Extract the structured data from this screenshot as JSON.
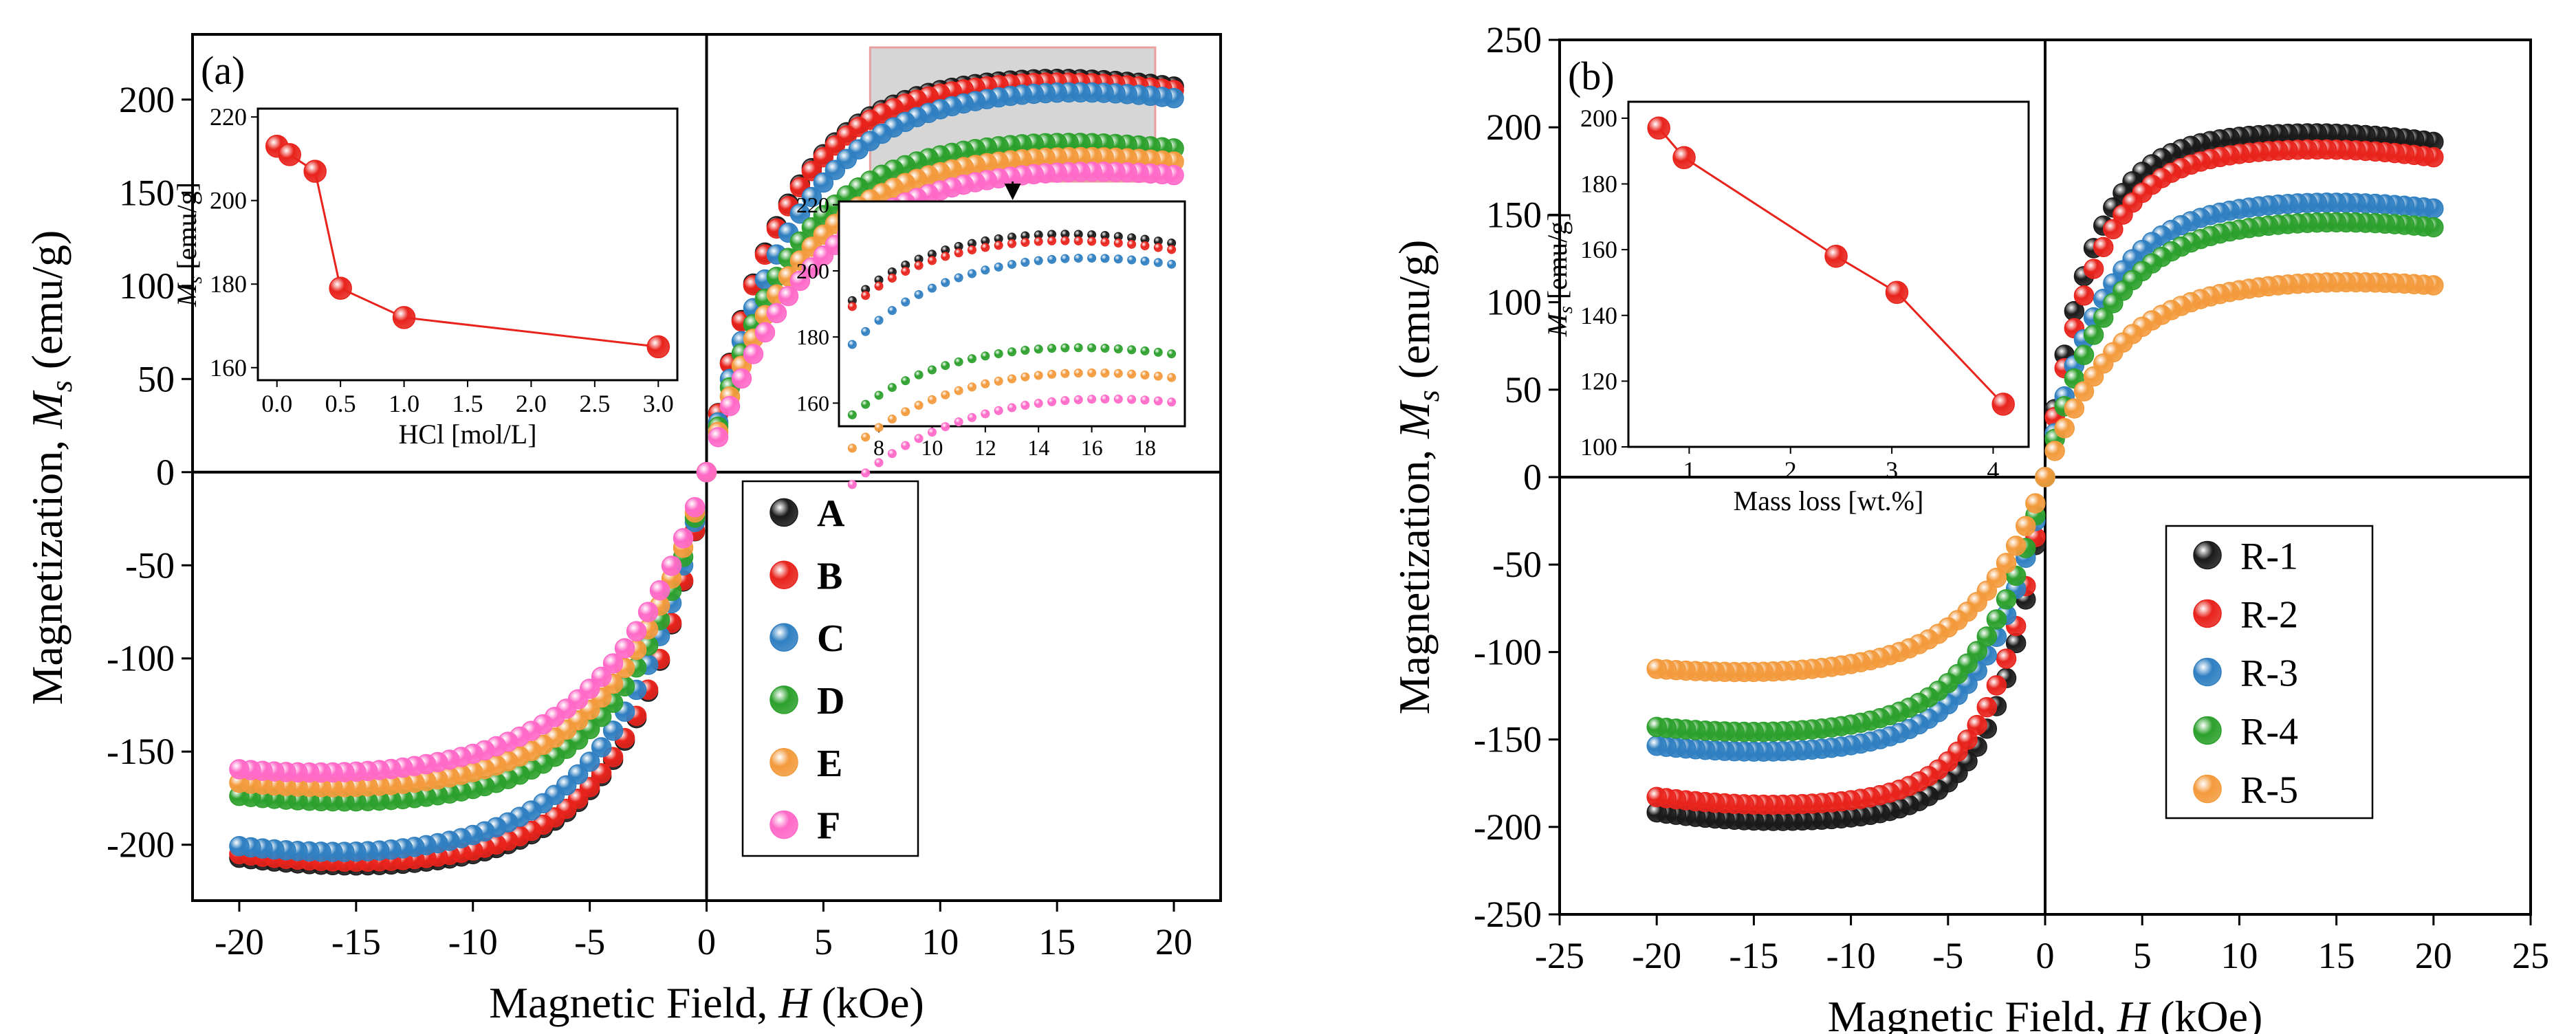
{
  "chart_data": [
    {
      "type": "scatter",
      "panel_label": "(a)",
      "xlabel_prefix": "Magnetic Field, ",
      "xlabel_var": "H",
      "xlabel_unit": " (kOe)",
      "ylabel_prefix": "Magnetization, ",
      "ylabel_var": "M",
      "ylabel_sub": "s",
      "ylabel_unit": " (emu/g)",
      "xlim": [
        -22,
        22
      ],
      "ylim": [
        -230,
        235
      ],
      "xticks": [
        -20,
        -15,
        -10,
        -5,
        0,
        5,
        10,
        15,
        20
      ],
      "yticks": [
        -200,
        -150,
        -100,
        -50,
        0,
        50,
        100,
        150,
        200
      ],
      "legend_position": "bottom-right",
      "series": [
        {
          "name": "A",
          "color": "#1a1a1a",
          "ms": 213,
          "h0": 3.0
        },
        {
          "name": "B",
          "color": "#e8231c",
          "ms": 211,
          "h0": 3.0
        },
        {
          "name": "C",
          "color": "#2f7fc1",
          "ms": 207,
          "h0": 3.5
        },
        {
          "name": "D",
          "color": "#2ca02c",
          "ms": 179,
          "h0": 3.3
        },
        {
          "name": "E",
          "color": "#f39a3c",
          "ms": 172,
          "h0": 3.6
        },
        {
          "name": "F",
          "color": "#ff69c8",
          "ms": 165,
          "h0": 4.0
        }
      ],
      "inset": {
        "xlabel": "HCl [mol/L]",
        "ylabel_var": "M",
        "ylabel_sub": "s",
        "ylabel_unit": " [emu/g]",
        "x": [
          0.0,
          0.1,
          0.3,
          0.5,
          1.0,
          3.0
        ],
        "y": [
          213,
          211,
          207,
          179,
          172,
          165
        ],
        "xlim": [
          -0.15,
          3.15
        ],
        "ylim": [
          157,
          222
        ],
        "xticks": [
          "0.0",
          "0.5",
          "1.0",
          "1.5",
          "2.0",
          "2.5",
          "3.0"
        ],
        "yticks": [
          160,
          180,
          200,
          220
        ],
        "color": "#e8231c"
      },
      "zoom_inset": {
        "xlim": [
          6.5,
          19.5
        ],
        "ylim": [
          153,
          221
        ],
        "xticks": [
          8,
          10,
          12,
          14,
          16,
          18
        ],
        "yticks": [
          160,
          180,
          200,
          220
        ]
      }
    },
    {
      "type": "scatter",
      "panel_label": "(b)",
      "xlabel_prefix": "Magnetic Field, ",
      "xlabel_var": "H",
      "xlabel_unit": " (kOe)",
      "ylabel_prefix": "Magnetization, ",
      "ylabel_var": "M",
      "ylabel_sub": "s",
      "ylabel_unit": " (emu/g)",
      "xlim": [
        -25,
        25
      ],
      "ylim": [
        -250,
        250
      ],
      "xticks": [
        -25,
        -20,
        -15,
        -10,
        -5,
        0,
        5,
        10,
        15,
        20,
        25
      ],
      "yticks": [
        -250,
        -200,
        -150,
        -100,
        -50,
        0,
        50,
        100,
        150,
        200,
        250
      ],
      "legend_position": "bottom-right",
      "series": [
        {
          "name": "R-1",
          "color": "#1a1a1a",
          "ms": 197,
          "h0": 2.2
        },
        {
          "name": "R-2",
          "color": "#e8231c",
          "ms": 188,
          "h0": 2.4
        },
        {
          "name": "R-3",
          "color": "#2f7fc1",
          "ms": 158,
          "h0": 2.8
        },
        {
          "name": "R-4",
          "color": "#2ca02c",
          "ms": 147,
          "h0": 3.0
        },
        {
          "name": "R-5",
          "color": "#f39a3c",
          "ms": 113,
          "h0": 3.4
        }
      ],
      "inset": {
        "xlabel": "Mass loss [wt.%]",
        "ylabel_var": "M",
        "ylabel_sub": "s",
        "ylabel_unit": " [emu/g]",
        "x": [
          0.7,
          0.95,
          2.45,
          3.05,
          4.1
        ],
        "y": [
          197,
          188,
          158,
          147,
          113
        ],
        "xlim": [
          0.4,
          4.35
        ],
        "ylim": [
          100,
          205
        ],
        "xticks": [
          "1",
          "2",
          "3",
          "4"
        ],
        "yticks": [
          100,
          120,
          140,
          160,
          180,
          200
        ],
        "color": "#e8231c"
      }
    }
  ]
}
